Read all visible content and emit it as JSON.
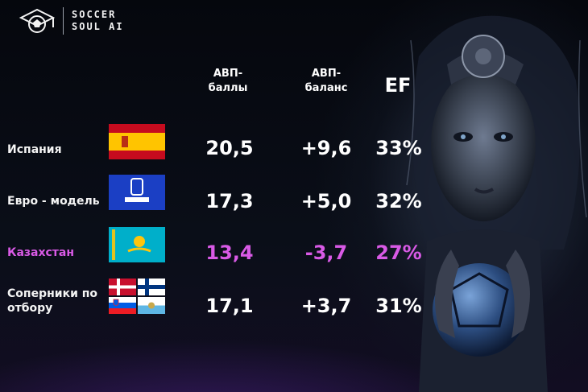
{
  "brand": {
    "line1": "SOCCER",
    "line2": "SOUL AI"
  },
  "headers": {
    "points": "АВП-\nбаллы",
    "balance": "АВП-\nбаланс",
    "ef": "EF"
  },
  "rows": [
    {
      "label": "Испания",
      "flag": "spain-flag-icon",
      "points": "20,5",
      "balance": "+9,6",
      "ef": "33%"
    },
    {
      "label": "Евро - модель",
      "flag": "euro-2024-logo-icon",
      "points": "17,3",
      "balance": "+5,0",
      "ef": "32%"
    },
    {
      "label": "Казахстан",
      "flag": "kazakhstan-flag-icon",
      "points": "13,4",
      "balance": "-3,7",
      "ef": "27%",
      "highlight": true
    },
    {
      "label": "Соперники по\nотбору",
      "flags": [
        "denmark-flag-icon",
        "finland-flag-icon",
        "slovenia-flag-icon",
        "san-marino-flag-icon"
      ],
      "points": "17,1",
      "balance": "+3,7",
      "ef": "31%"
    }
  ],
  "colors": {
    "highlight": "#d95ae6",
    "text": "#ffffff",
    "background": "#06080f"
  }
}
